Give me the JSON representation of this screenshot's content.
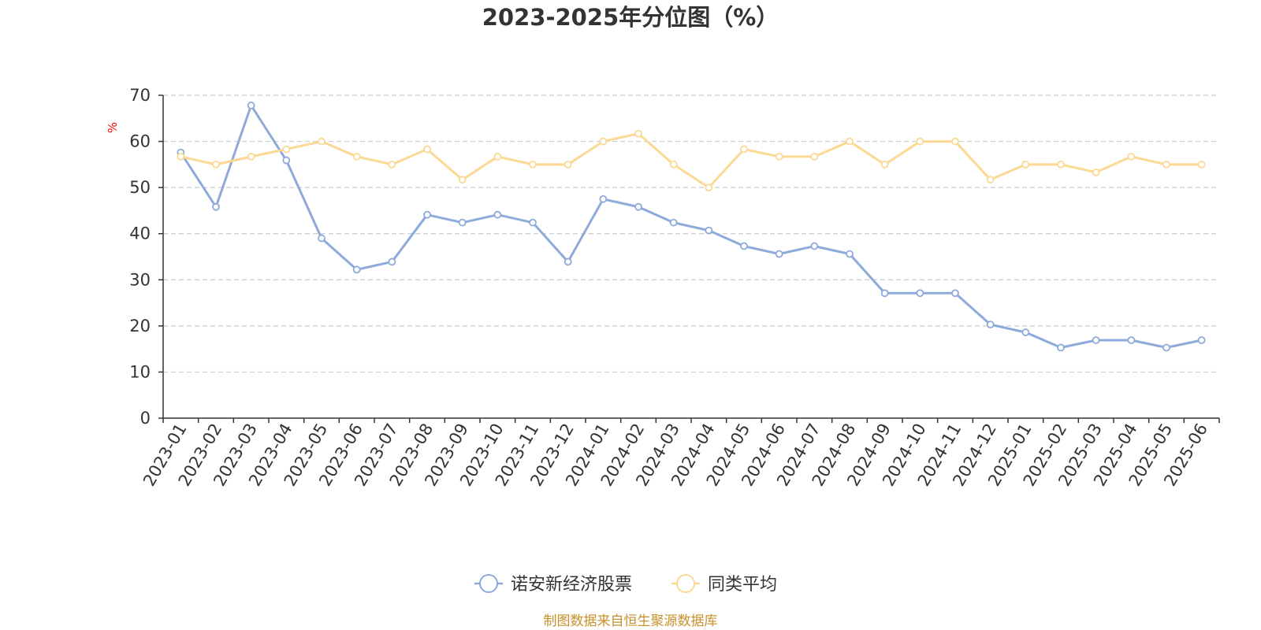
{
  "chart_data": {
    "type": "line",
    "title": "2023-2025年分位图（%）",
    "ylabel": "%",
    "xlabel": "",
    "ylim": [
      0,
      70
    ],
    "yticks": [
      0,
      10,
      20,
      30,
      40,
      50,
      60,
      70
    ],
    "grid": true,
    "legend_position": "bottom",
    "categories": [
      "2023-01",
      "2023-02",
      "2023-03",
      "2023-04",
      "2023-05",
      "2023-06",
      "2023-07",
      "2023-08",
      "2023-09",
      "2023-10",
      "2023-11",
      "2023-12",
      "2024-01",
      "2024-02",
      "2024-03",
      "2024-04",
      "2024-05",
      "2024-06",
      "2024-07",
      "2024-08",
      "2024-09",
      "2024-10",
      "2024-11",
      "2024-12",
      "2025-01",
      "2025-02",
      "2025-03",
      "2025-04",
      "2025-05",
      "2025-06"
    ],
    "series": [
      {
        "name": "诺安新经济股票",
        "color": "#8eaadb",
        "values": [
          57.6,
          45.8,
          67.8,
          55.9,
          39.0,
          32.2,
          33.9,
          44.1,
          42.4,
          44.1,
          42.4,
          33.9,
          47.5,
          45.8,
          42.4,
          40.7,
          37.3,
          35.6,
          37.3,
          35.6,
          27.1,
          27.1,
          27.1,
          20.3,
          18.6,
          15.3,
          16.9,
          16.9,
          15.3,
          16.9
        ]
      },
      {
        "name": "同类平均",
        "color": "#fbd994",
        "values": [
          56.7,
          55.0,
          56.7,
          58.3,
          60.0,
          56.7,
          55.0,
          58.3,
          51.7,
          56.7,
          55.0,
          55.0,
          60.0,
          61.7,
          55.0,
          50.0,
          58.3,
          56.7,
          56.7,
          60.0,
          55.0,
          60.0,
          60.0,
          51.7,
          55.0,
          55.0,
          53.3,
          56.7,
          55.0,
          55.0
        ]
      }
    ]
  },
  "source_note": "制图数据来自恒生聚源数据库"
}
